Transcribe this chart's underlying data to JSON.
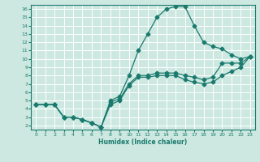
{
  "xlabel": "Humidex (Indice chaleur)",
  "xlim": [
    -0.5,
    23.5
  ],
  "ylim": [
    1.5,
    16.5
  ],
  "xticks": [
    0,
    1,
    2,
    3,
    4,
    5,
    6,
    7,
    8,
    9,
    10,
    11,
    12,
    13,
    14,
    15,
    16,
    17,
    18,
    19,
    20,
    21,
    22,
    23
  ],
  "yticks": [
    2,
    3,
    4,
    5,
    6,
    7,
    8,
    9,
    10,
    11,
    12,
    13,
    14,
    15,
    16
  ],
  "bg_color": "#cce8e0",
  "line_color": "#1a7a6e",
  "grid_color": "#ffffff",
  "line_peak_x": [
    0,
    1,
    2,
    3,
    4,
    5,
    6,
    7,
    8,
    9,
    10,
    11,
    12,
    13,
    14,
    15,
    16,
    17,
    18,
    19,
    20,
    21,
    22,
    23
  ],
  "line_peak_y": [
    4.5,
    4.5,
    4.5,
    3.0,
    3.0,
    2.7,
    2.3,
    1.8,
    5.0,
    5.5,
    8.0,
    11.0,
    13.0,
    15.0,
    16.0,
    16.3,
    16.3,
    14.0,
    12.0,
    11.5,
    11.2,
    10.5,
    10.0,
    10.3
  ],
  "line_mid_x": [
    0,
    1,
    2,
    3,
    4,
    5,
    6,
    7,
    8,
    9,
    10,
    11,
    12,
    13,
    14,
    15,
    16,
    17,
    18,
    19,
    20,
    21,
    22,
    23
  ],
  "line_mid_y": [
    4.5,
    4.5,
    4.5,
    3.0,
    3.0,
    2.7,
    2.3,
    1.8,
    4.8,
    5.2,
    7.0,
    8.0,
    8.0,
    8.3,
    8.3,
    8.3,
    8.0,
    7.8,
    7.5,
    7.8,
    9.5,
    9.5,
    9.5,
    10.3
  ],
  "line_low_x": [
    0,
    1,
    2,
    3,
    4,
    5,
    6,
    7,
    8,
    9,
    10,
    11,
    12,
    13,
    14,
    15,
    16,
    17,
    18,
    19,
    20,
    21,
    22,
    23
  ],
  "line_low_y": [
    4.5,
    4.5,
    4.5,
    3.0,
    3.0,
    2.7,
    2.3,
    1.8,
    4.5,
    5.0,
    6.8,
    7.8,
    7.8,
    8.0,
    8.0,
    8.0,
    7.5,
    7.2,
    7.0,
    7.2,
    8.0,
    8.5,
    9.0,
    10.3
  ]
}
